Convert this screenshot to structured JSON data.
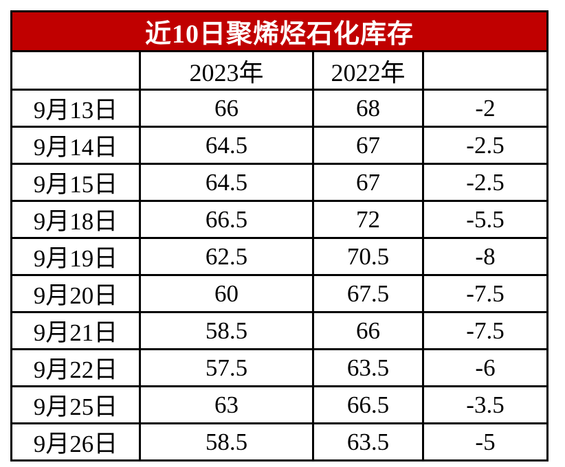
{
  "title": "近10日聚烯烃石化库存",
  "colors": {
    "title_bg": "#C00000",
    "title_text": "#FFFFFF",
    "border": "#000000",
    "cell_bg": "#FFFFFF"
  },
  "header": {
    "date": "",
    "y2023": "2023年",
    "y2022": "2022年",
    "diff": ""
  },
  "chart_data": {
    "type": "table",
    "title": "近10日聚烯烃石化库存",
    "columns": [
      "",
      "2023年",
      "2022年",
      ""
    ],
    "rows": [
      [
        "9月13日",
        66,
        68,
        -2
      ],
      [
        "9月14日",
        64.5,
        67,
        -2.5
      ],
      [
        "9月15日",
        64.5,
        67,
        -2.5
      ],
      [
        "9月18日",
        66.5,
        72,
        -5.5
      ],
      [
        "9月19日",
        62.5,
        70.5,
        -8
      ],
      [
        "9月20日",
        60,
        67.5,
        -7.5
      ],
      [
        "9月21日",
        58.5,
        66,
        -7.5
      ],
      [
        "9月22日",
        57.5,
        63.5,
        -6
      ],
      [
        "9月25日",
        63,
        66.5,
        -3.5
      ],
      [
        "9月26日",
        58.5,
        63.5,
        -5
      ]
    ]
  }
}
